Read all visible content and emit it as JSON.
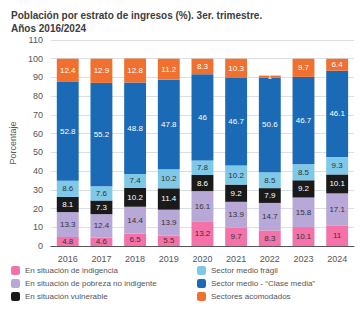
{
  "chart_data": {
    "type": "bar",
    "stacked": true,
    "title": "Población por estrato de ingresos (%). 3er. trimestre.\nAños 2016/2024",
    "ylabel": "Porcentaje",
    "categories": [
      "2016",
      "2017",
      "2018",
      "2019",
      "2020",
      "2021",
      "2022",
      "2023",
      "2024"
    ],
    "series": [
      {
        "name": "En situación de indigencia",
        "color": "#f472a8",
        "values": [
          4.8,
          4.6,
          6.5,
          5.5,
          13.2,
          9.7,
          8.3,
          10.1,
          11.0
        ]
      },
      {
        "name": "En situación de pobreza no indigente",
        "color": "#b8a8d8",
        "values": [
          13.3,
          12.4,
          14.4,
          13.9,
          16.1,
          13.9,
          14.7,
          15.8,
          17.1
        ]
      },
      {
        "name": "En situación vulnerable",
        "color": "#1a1a1a",
        "values": [
          8.1,
          7.3,
          10.2,
          11.4,
          8.6,
          9.2,
          7.9,
          9.2,
          10.1
        ]
      },
      {
        "name": "Sector medio frágil",
        "color": "#7ec8e8",
        "values": [
          8.6,
          7.6,
          7.4,
          10.2,
          7.8,
          10.2,
          8.5,
          8.5,
          9.3
        ]
      },
      {
        "name": "Sector medio - “Clase media”",
        "color": "#1a6ab5",
        "values": [
          52.8,
          55.2,
          48.8,
          47.8,
          46.0,
          46.7,
          50.6,
          46.7,
          46.1
        ]
      },
      {
        "name": "Sectores acomodados",
        "color": "#f07030",
        "values": [
          12.4,
          12.9,
          12.8,
          11.2,
          8.3,
          10.3,
          1.0,
          9.7,
          6.4
        ]
      }
    ],
    "ylim": [
      0,
      110
    ],
    "yticks": [
      0,
      10,
      20,
      30,
      40,
      50,
      60,
      70,
      80,
      90,
      100,
      110
    ],
    "grid": true,
    "data_labels": true,
    "legend": "bottom"
  }
}
